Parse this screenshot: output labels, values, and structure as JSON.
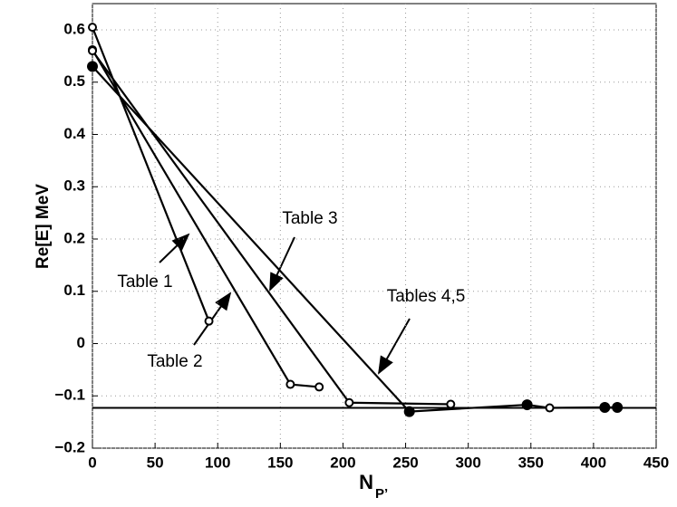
{
  "chart_data": {
    "type": "line",
    "ylabel": "Re[E] MeV",
    "xlabel": "N",
    "xlabel_sub": "P’",
    "xlim": [
      0,
      450
    ],
    "xticks": [
      0,
      50,
      100,
      150,
      200,
      250,
      300,
      350,
      400,
      450
    ],
    "ylim": [
      -0.2,
      0.6
    ],
    "yticks": [
      {
        "value": -0.2,
        "label": "−0.2"
      },
      {
        "value": -0.1,
        "label": "−0.1"
      },
      0,
      0.1,
      0.2,
      0.3,
      0.4,
      0.5,
      0.6
    ],
    "grid": true,
    "reference_line": -0.123,
    "series": [
      {
        "name": "Table 1",
        "color": "#000000",
        "x": [
          0,
          93
        ],
        "values": [
          0.605,
          0.043
        ],
        "marker_filled": [
          false,
          false
        ]
      },
      {
        "name": "Table 2",
        "color": "#000000",
        "x": [
          0,
          158,
          181
        ],
        "values": [
          0.562,
          -0.078,
          -0.083
        ],
        "marker_filled": [
          false,
          false,
          false
        ]
      },
      {
        "name": "Table 3",
        "color": "#000000",
        "x": [
          0,
          205,
          286
        ],
        "values": [
          0.56,
          -0.113,
          -0.116
        ],
        "marker_filled": [
          false,
          false,
          false
        ]
      },
      {
        "name": "Tables 4,5",
        "color": "#000000",
        "x": [
          0,
          253,
          347,
          365,
          409,
          419
        ],
        "values": [
          0.53,
          -0.13,
          -0.117,
          -0.123,
          -0.122,
          -0.122
        ],
        "marker_filled": [
          true,
          true,
          true,
          false,
          true,
          true
        ]
      }
    ]
  }
}
